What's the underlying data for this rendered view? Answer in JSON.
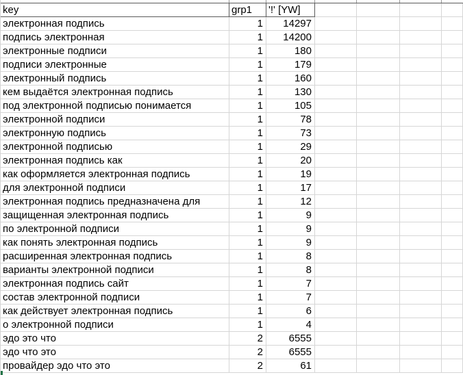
{
  "app": {
    "context": "spreadsheet table crop"
  },
  "colors": {
    "gridline": "#d6d6d6",
    "header_border": "#5a5a5a",
    "text": "#000000",
    "accent_green": "#217346",
    "background": "#ffffff"
  },
  "table": {
    "columns": [
      {
        "label": "key",
        "align": "left"
      },
      {
        "label": "grp1",
        "align": "right"
      },
      {
        "label": "'!' [YW]",
        "align": "right"
      },
      {
        "label": "",
        "align": "left"
      },
      {
        "label": "",
        "align": "left"
      },
      {
        "label": "",
        "align": "left"
      },
      {
        "label": "",
        "align": "left"
      }
    ],
    "rows": [
      {
        "key": "электронная подпись",
        "grp1": "1",
        "yw": "14297"
      },
      {
        "key": "подпись электронная",
        "grp1": "1",
        "yw": "14200"
      },
      {
        "key": "электронные подписи",
        "grp1": "1",
        "yw": "180"
      },
      {
        "key": "подписи электронные",
        "grp1": "1",
        "yw": "179"
      },
      {
        "key": "электронный подпись",
        "grp1": "1",
        "yw": "160"
      },
      {
        "key": "кем выдаётся электронная подпись",
        "grp1": "1",
        "yw": "130"
      },
      {
        "key": "под электронной подписью понимается",
        "grp1": "1",
        "yw": "105"
      },
      {
        "key": "электронной подписи",
        "grp1": "1",
        "yw": "78"
      },
      {
        "key": "электронную подпись",
        "grp1": "1",
        "yw": "73"
      },
      {
        "key": "электронной подписью",
        "grp1": "1",
        "yw": "29"
      },
      {
        "key": "электронная подпись как",
        "grp1": "1",
        "yw": "20"
      },
      {
        "key": "как оформляется электронная подпись",
        "grp1": "1",
        "yw": "19"
      },
      {
        "key": "для электронной подписи",
        "grp1": "1",
        "yw": "17"
      },
      {
        "key": "электронная подпись предназначена для",
        "grp1": "1",
        "yw": "12"
      },
      {
        "key": "защищенная электронная подпись",
        "grp1": "1",
        "yw": "9"
      },
      {
        "key": "по электронной подписи",
        "grp1": "1",
        "yw": "9"
      },
      {
        "key": "как понять электронная подпись",
        "grp1": "1",
        "yw": "9"
      },
      {
        "key": "расширенная электронная подпись",
        "grp1": "1",
        "yw": "8"
      },
      {
        "key": "варианты электронной подписи",
        "grp1": "1",
        "yw": "8"
      },
      {
        "key": "электронная подпись сайт",
        "grp1": "1",
        "yw": "7"
      },
      {
        "key": "состав электронной подписи",
        "grp1": "1",
        "yw": "7"
      },
      {
        "key": "как действует электронная подпись",
        "grp1": "1",
        "yw": "6"
      },
      {
        "key": "о электронной подписи",
        "grp1": "1",
        "yw": "4"
      },
      {
        "key": "эдо это что",
        "grp1": "2",
        "yw": "6555"
      },
      {
        "key": "эдо что это",
        "grp1": "2",
        "yw": "6555"
      },
      {
        "key": "провайдер эдо что это",
        "grp1": "2",
        "yw": "61"
      }
    ]
  },
  "strip_tick_positions": [
    333,
    387,
    458,
    519,
    582,
    643
  ]
}
